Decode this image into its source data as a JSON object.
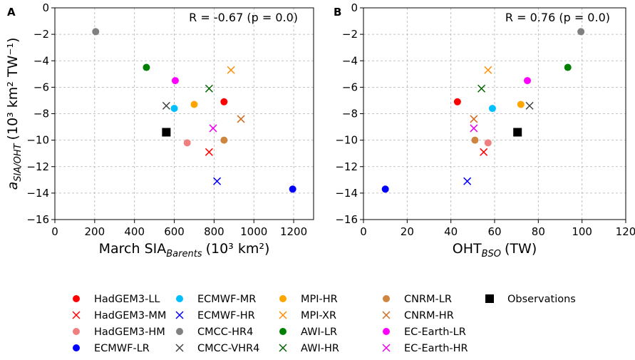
{
  "chart_data": [
    {
      "panel_label": "A",
      "type": "scatter",
      "title": "",
      "annotation": "R = -0.67 (p = 0.0)",
      "xlabel": "March SIA",
      "xlabel_sub": "Barents",
      "xlabel_units": "(10³ km²)",
      "ylabel": "a",
      "ylabel_sub": "SIA/OHT",
      "ylabel_units": "(10³ km² TW⁻¹)",
      "xlim": [
        0,
        1300
      ],
      "ylim": [
        -16,
        0
      ],
      "xticks": [
        0,
        200,
        400,
        600,
        800,
        1000,
        1200
      ],
      "yticks": [
        0,
        -2,
        -4,
        -6,
        -8,
        -10,
        -12,
        -14,
        -16
      ],
      "grid": true,
      "points": [
        {
          "model": "HadGEM3-LL",
          "x": 850,
          "y": -7.1
        },
        {
          "model": "HadGEM3-MM",
          "x": 775,
          "y": -10.9
        },
        {
          "model": "HadGEM3-HM",
          "x": 665,
          "y": -10.2
        },
        {
          "model": "ECMWF-LR",
          "x": 1195,
          "y": -13.7
        },
        {
          "model": "ECMWF-MR",
          "x": 600,
          "y": -7.6
        },
        {
          "model": "ECMWF-HR",
          "x": 815,
          "y": -13.1
        },
        {
          "model": "CMCC-HR4",
          "x": 205,
          "y": -1.8
        },
        {
          "model": "CMCC-VHR4",
          "x": 560,
          "y": -7.4
        },
        {
          "model": "MPI-HR",
          "x": 700,
          "y": -7.3
        },
        {
          "model": "MPI-XR",
          "x": 885,
          "y": -4.7
        },
        {
          "model": "AWI-LR",
          "x": 460,
          "y": -4.5
        },
        {
          "model": "AWI-HR",
          "x": 775,
          "y": -6.1
        },
        {
          "model": "CNRM-LR",
          "x": 850,
          "y": -10.0
        },
        {
          "model": "CNRM-HR",
          "x": 935,
          "y": -8.4
        },
        {
          "model": "EC-Earth-LR",
          "x": 605,
          "y": -5.5
        },
        {
          "model": "EC-Earth-HR",
          "x": 795,
          "y": -9.1
        },
        {
          "model": "Observations",
          "x": 560,
          "y": -9.4
        }
      ]
    },
    {
      "panel_label": "B",
      "type": "scatter",
      "title": "",
      "annotation": "R = 0.76 (p = 0.0)",
      "xlabel": "OHT",
      "xlabel_sub": "BSO",
      "xlabel_units": "(TW)",
      "ylabel": "",
      "xlim": [
        0,
        120
      ],
      "ylim": [
        -16,
        0
      ],
      "xticks": [
        0,
        20,
        40,
        60,
        80,
        100,
        120
      ],
      "yticks": [
        0,
        -2,
        -4,
        -6,
        -8,
        -10,
        -12,
        -14,
        -16
      ],
      "grid": true,
      "points": [
        {
          "model": "HadGEM3-LL",
          "x": 43,
          "y": -7.1
        },
        {
          "model": "HadGEM3-MM",
          "x": 55,
          "y": -10.9
        },
        {
          "model": "HadGEM3-HM",
          "x": 57,
          "y": -10.2
        },
        {
          "model": "ECMWF-LR",
          "x": 10,
          "y": -13.7
        },
        {
          "model": "ECMWF-MR",
          "x": 59,
          "y": -7.6
        },
        {
          "model": "ECMWF-HR",
          "x": 47.5,
          "y": -13.1
        },
        {
          "model": "CMCC-HR4",
          "x": 99.5,
          "y": -1.8
        },
        {
          "model": "CMCC-VHR4",
          "x": 76,
          "y": -7.4
        },
        {
          "model": "MPI-HR",
          "x": 72,
          "y": -7.3
        },
        {
          "model": "MPI-XR",
          "x": 57,
          "y": -4.7
        },
        {
          "model": "AWI-LR",
          "x": 93.5,
          "y": -4.5
        },
        {
          "model": "AWI-HR",
          "x": 54,
          "y": -6.1
        },
        {
          "model": "CNRM-LR",
          "x": 51,
          "y": -10.0
        },
        {
          "model": "CNRM-HR",
          "x": 50.5,
          "y": -8.4
        },
        {
          "model": "EC-Earth-LR",
          "x": 75,
          "y": -5.5
        },
        {
          "model": "EC-Earth-HR",
          "x": 50.5,
          "y": -9.1
        },
        {
          "model": "Observations",
          "x": 70.5,
          "y": -9.4
        }
      ]
    }
  ],
  "legend": {
    "placement": "bottom",
    "entries": [
      {
        "label": "HadGEM3-LL",
        "marker": "circle",
        "color": "#ff0000"
      },
      {
        "label": "HadGEM3-MM",
        "marker": "x",
        "color": "#ff0000"
      },
      {
        "label": "HadGEM3-HM",
        "marker": "circle",
        "color": "#f08080"
      },
      {
        "label": "ECMWF-LR",
        "marker": "circle",
        "color": "#0000ff"
      },
      {
        "label": "ECMWF-MR",
        "marker": "circle",
        "color": "#00bfff"
      },
      {
        "label": "ECMWF-HR",
        "marker": "x",
        "color": "#0000ff"
      },
      {
        "label": "CMCC-HR4",
        "marker": "circle",
        "color": "#808080"
      },
      {
        "label": "CMCC-VHR4",
        "marker": "x",
        "color": "#404040"
      },
      {
        "label": "MPI-HR",
        "marker": "circle",
        "color": "#ffa500"
      },
      {
        "label": "MPI-XR",
        "marker": "x",
        "color": "#ff8c00"
      },
      {
        "label": "AWI-LR",
        "marker": "circle",
        "color": "#008000"
      },
      {
        "label": "AWI-HR",
        "marker": "x",
        "color": "#006400"
      },
      {
        "label": "CNRM-LR",
        "marker": "circle",
        "color": "#cd853f"
      },
      {
        "label": "CNRM-HR",
        "marker": "x",
        "color": "#d2691e"
      },
      {
        "label": "EC-Earth-LR",
        "marker": "circle",
        "color": "#ff00ff"
      },
      {
        "label": "EC-Earth-HR",
        "marker": "x",
        "color": "#ee00ee"
      },
      {
        "label": "Observations",
        "marker": "square",
        "color": "#000000"
      }
    ]
  }
}
